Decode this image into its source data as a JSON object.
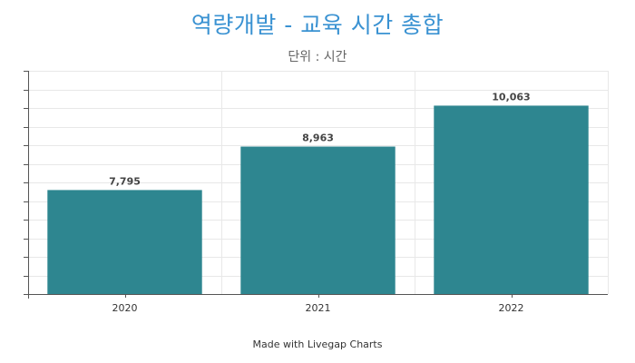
{
  "chart_data": {
    "type": "bar",
    "title": "역량개발 - 교육 시간 총합",
    "subtitle": "단위 : 시간",
    "categories": [
      "2020",
      "2021",
      "2022"
    ],
    "values": [
      7795,
      8963,
      10063
    ],
    "value_labels": [
      "7,795",
      "8,963",
      "10,063"
    ],
    "xlabel": "",
    "ylabel": "",
    "ylim": [
      5000,
      11000
    ],
    "ytick_step": 500,
    "grid": true,
    "legend": "none",
    "bar_color": "#2e8690"
  },
  "footer": {
    "text": "Made with Livegap Charts"
  },
  "colors": {
    "title": "#3a92d2",
    "grid": "#e8e8e8",
    "axis": "#555555"
  }
}
